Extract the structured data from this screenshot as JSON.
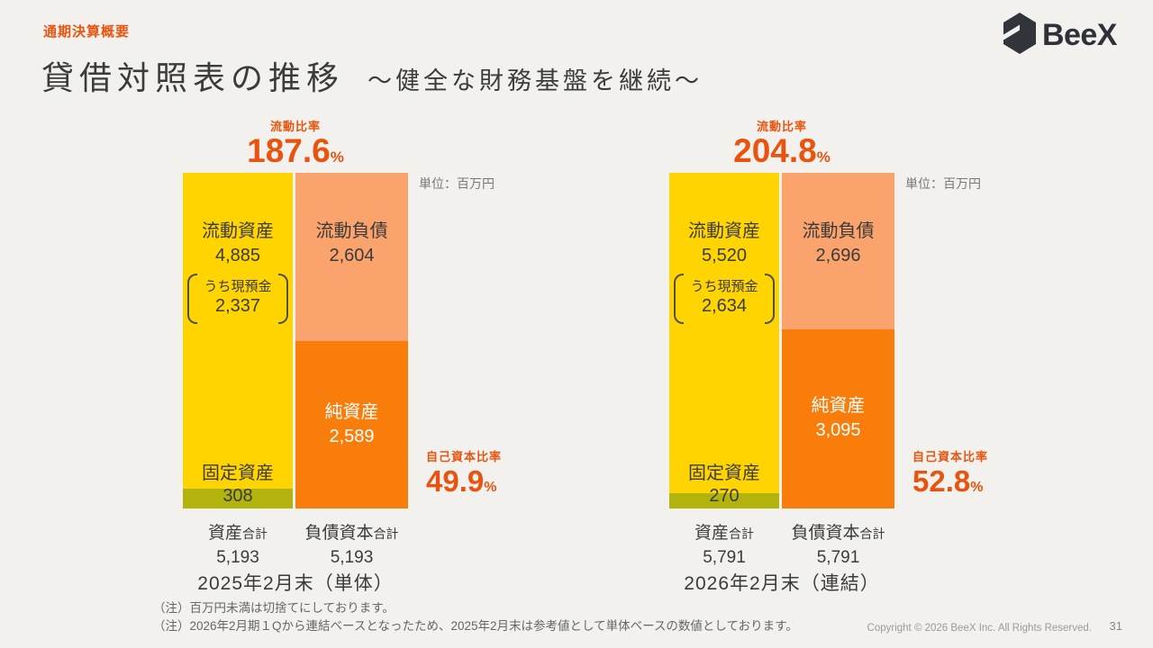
{
  "header": {
    "section_label": "通期決算概要",
    "title": "貸借対照表の推移",
    "subtitle": "～健全な財務基盤を継続～",
    "logo_text": "BeeX"
  },
  "charts": [
    {
      "ratio_label": "流動比率",
      "ratio_value": "187.6",
      "ratio_pct": "%",
      "unit": "単位：百万円",
      "current_assets_label": "流動資産",
      "current_assets_value": "4,885",
      "cash_label": "うち現預金",
      "cash_value": "2,337",
      "fixed_assets_label": "固定資産",
      "fixed_assets_value": "308",
      "current_liab_label": "流動負債",
      "current_liab_value": "2,604",
      "net_assets_label": "純資産",
      "net_assets_value": "2,589",
      "assets_total_label": "資産",
      "assets_total_suffix": "合計",
      "assets_total_value": "5,193",
      "liab_total_label": "負債資本",
      "liab_total_suffix": "合計",
      "liab_total_value": "5,193",
      "equity_ratio_label": "自己資本比率",
      "equity_ratio_value": "49.9",
      "equity_ratio_pct": "%",
      "caption": "2025年2月末（単体）"
    },
    {
      "ratio_label": "流動比率",
      "ratio_value": "204.8",
      "ratio_pct": "%",
      "unit": "単位：百万円",
      "current_assets_label": "流動資産",
      "current_assets_value": "5,520",
      "cash_label": "うち現預金",
      "cash_value": "2,634",
      "fixed_assets_label": "固定資産",
      "fixed_assets_value": "270",
      "current_liab_label": "流動負債",
      "current_liab_value": "2,696",
      "net_assets_label": "純資産",
      "net_assets_value": "3,095",
      "assets_total_label": "資産",
      "assets_total_suffix": "合計",
      "assets_total_value": "5,791",
      "liab_total_label": "負債資本",
      "liab_total_suffix": "合計",
      "liab_total_value": "5,791",
      "equity_ratio_label": "自己資本比率",
      "equity_ratio_value": "52.8",
      "equity_ratio_pct": "%",
      "caption": "2026年2月末（連結）"
    }
  ],
  "chart_data": [
    {
      "type": "bar",
      "stacked": true,
      "title": "2025年2月末（単体）",
      "unit": "百万円",
      "bars": [
        {
          "name": "資産合計",
          "total": 5193,
          "segments": [
            {
              "label": "流動資産",
              "value": 4885,
              "note": "うち現預金 2,337",
              "color": "#ffd400"
            },
            {
              "label": "固定資産",
              "value": 308,
              "color": "#b3b30d"
            }
          ]
        },
        {
          "name": "負債資本合計",
          "total": 5193,
          "segments": [
            {
              "label": "流動負債",
              "value": 2604,
              "color": "#fba36c"
            },
            {
              "label": "純資産",
              "value": 2589,
              "color": "#f87d0a"
            }
          ]
        }
      ],
      "ratios": {
        "流動比率": 187.6,
        "自己資本比率": 49.9
      }
    },
    {
      "type": "bar",
      "stacked": true,
      "title": "2026年2月末（連結）",
      "unit": "百万円",
      "bars": [
        {
          "name": "資産合計",
          "total": 5791,
          "segments": [
            {
              "label": "流動資産",
              "value": 5520,
              "note": "うち現預金 2,634",
              "color": "#ffd400"
            },
            {
              "label": "固定資産",
              "value": 270,
              "color": "#b3b30d"
            }
          ]
        },
        {
          "name": "負債資本合計",
          "total": 5791,
          "segments": [
            {
              "label": "流動負債",
              "value": 2696,
              "color": "#fba36c"
            },
            {
              "label": "純資産",
              "value": 3095,
              "color": "#f87d0a"
            }
          ]
        }
      ],
      "ratios": {
        "流動比率": 204.8,
        "自己資本比率": 52.8
      }
    }
  ],
  "footer": {
    "notes": [
      "（注）百万円未満は切捨てにしております。",
      "（注）2026年2月期１Qから連結ベースとなったため、2025年2月末は参考値として単体ベースの数値としております。"
    ],
    "copyright": "Copyright © 2026 BeeX Inc. All Rights Reserved.",
    "page_number": "31"
  },
  "colors": {
    "background": "#f2f1ee",
    "accent_orange_text": "#e8540f",
    "current_assets": "#ffd400",
    "fixed_assets": "#b3b30d",
    "current_liabilities": "#fba36c",
    "net_assets": "#f87d0a",
    "dark_text": "#3b3b3b",
    "logo_dark": "#31353b"
  }
}
